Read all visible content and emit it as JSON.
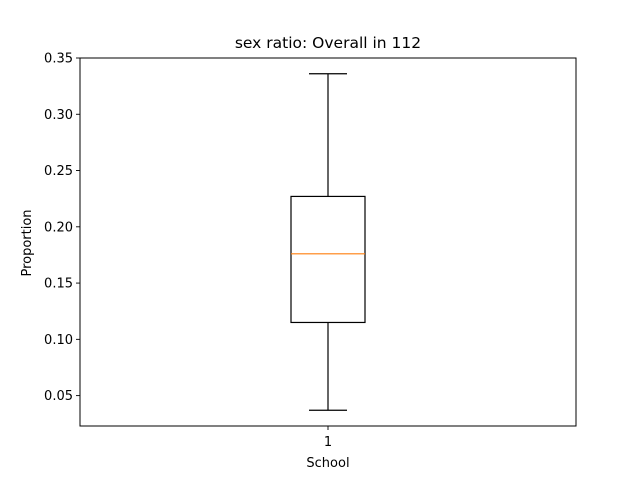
{
  "chart_data": {
    "type": "boxplot",
    "title": "sex ratio: Overall in 112",
    "xlabel": "School",
    "ylabel": "Proportion",
    "categories": [
      "1"
    ],
    "ylim": [
      0.023,
      0.35
    ],
    "yticks": [
      0.05,
      0.1,
      0.15,
      0.2,
      0.25,
      0.3,
      0.35
    ],
    "ytick_labels": [
      "0.05",
      "0.10",
      "0.15",
      "0.20",
      "0.25",
      "0.30",
      "0.35"
    ],
    "boxes": [
      {
        "category": "1",
        "whisker_low": 0.037,
        "q1": 0.115,
        "median": 0.176,
        "q3": 0.227,
        "whisker_high": 0.336
      }
    ],
    "colors": {
      "box": "#000000",
      "median": "#ff7f0e"
    },
    "grid": false,
    "legend": "none"
  }
}
